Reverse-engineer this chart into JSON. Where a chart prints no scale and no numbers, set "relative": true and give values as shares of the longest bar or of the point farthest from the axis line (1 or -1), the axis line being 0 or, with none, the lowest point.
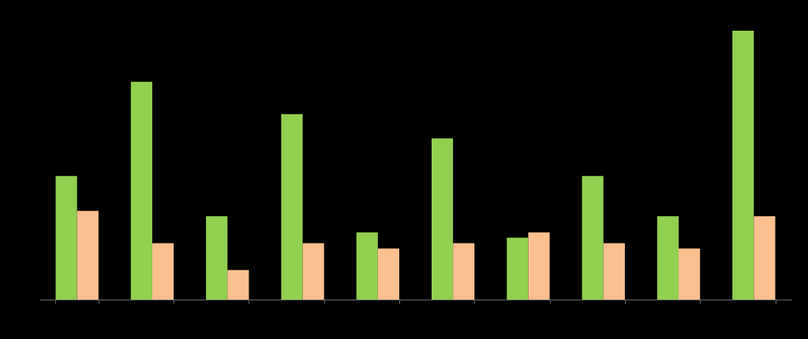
{
  "chart_data": {
    "type": "bar",
    "relative": true,
    "categories": [
      null,
      null,
      null,
      null,
      null,
      null,
      null,
      null,
      null,
      null
    ],
    "series": [
      {
        "color": "#92d050",
        "values": [
          0.46,
          0.81,
          0.31,
          0.69,
          0.25,
          0.6,
          0.23,
          0.46,
          0.31,
          1
        ]
      },
      {
        "color": "#fac090",
        "values": [
          0.33,
          0.21,
          0.11,
          0.21,
          0.19,
          0.21,
          0.25,
          0.21,
          0.19,
          0.31
        ]
      }
    ],
    "legend": false
  }
}
